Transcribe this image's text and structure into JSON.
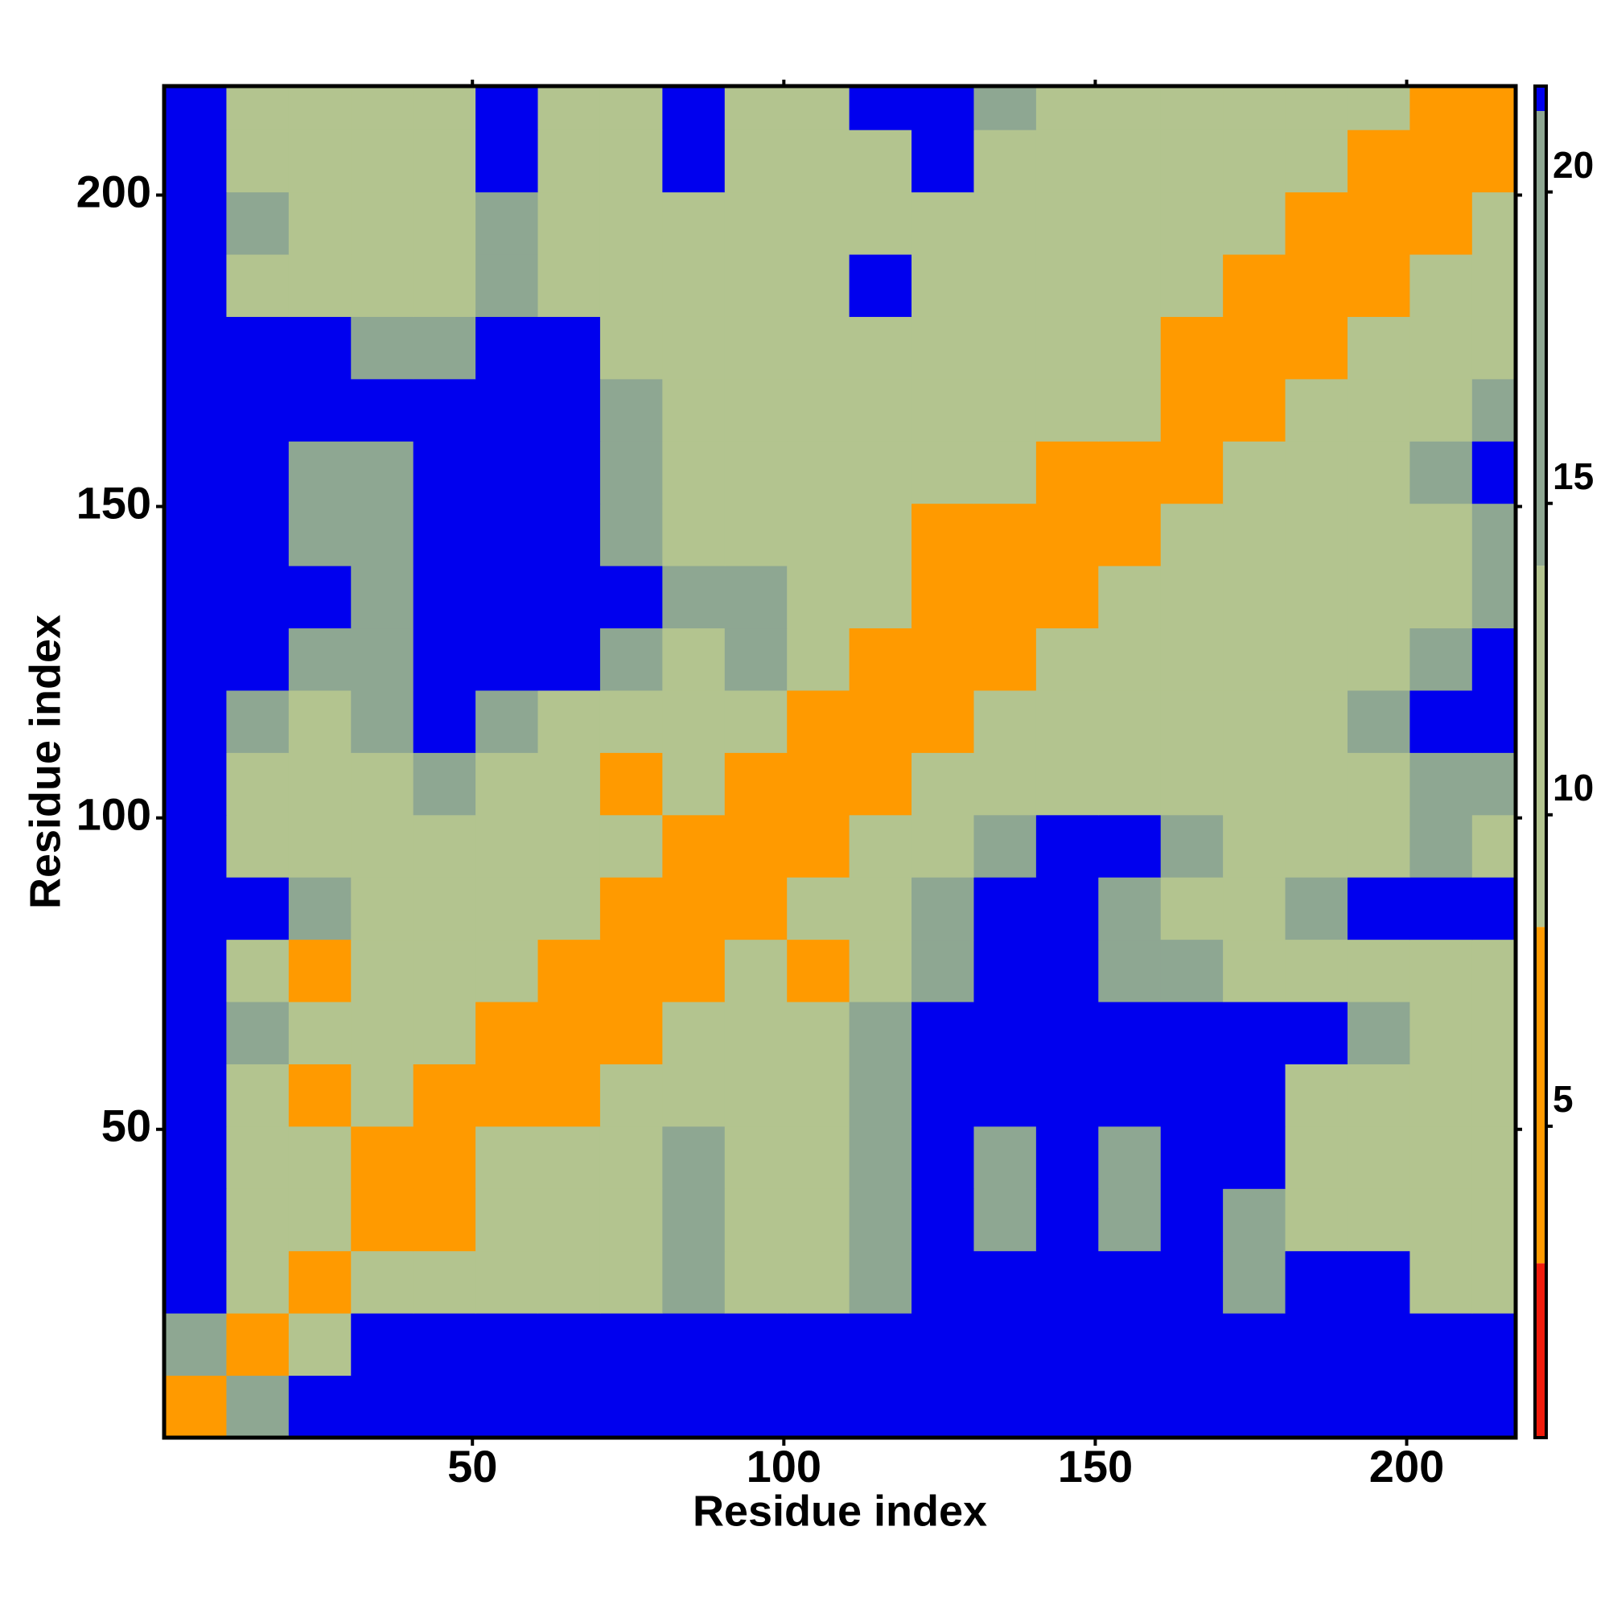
{
  "chart_data": {
    "type": "heatmap",
    "x_label": "Residue index",
    "y_label": "Residue index",
    "xlim": [
      0.5,
      217.5
    ],
    "ylim": [
      0.5,
      217.5
    ],
    "xticks": [
      50,
      100,
      150,
      200
    ],
    "yticks": [
      50,
      100,
      150,
      200
    ],
    "xbins": [
      0.5,
      10.5,
      20.5,
      30.5,
      40.5,
      50.5,
      60.5,
      70.5,
      80.5,
      90.5,
      100.5,
      110.5,
      120.5,
      130.5,
      140.5,
      150.5,
      160.5,
      170.5,
      180.5,
      190.5,
      200.5,
      210.5,
      217.5
    ],
    "ybins": [
      0.5,
      10.5,
      20.5,
      30.5,
      40.5,
      50.5,
      60.5,
      70.5,
      80.5,
      90.5,
      100.5,
      110.5,
      120.5,
      130.5,
      140.5,
      150.5,
      160.5,
      170.5,
      180.5,
      190.5,
      200.5,
      210.5,
      217.5
    ],
    "clim": [
      0,
      21.7
    ],
    "cticks": [
      5,
      10,
      15,
      20
    ],
    "color_bands": [
      {
        "max": 2.8,
        "color": "#f21c0c"
      },
      {
        "max": 8.2,
        "color": "#ff9a00"
      },
      {
        "max": 14,
        "color": "#b3c48f"
      },
      {
        "max": 21.3,
        "color": "#8ea792"
      },
      {
        "max": 21.7,
        "color": "#0000ee"
      }
    ],
    "z": [
      [
        4,
        15,
        21.5,
        21.5,
        21.5,
        21.5,
        21.5,
        21.5,
        21.5,
        21.5,
        21.5,
        21.5,
        21.5,
        21.5,
        21.5,
        21.5,
        21.5,
        21.5,
        21.5,
        21.5,
        21.5,
        21.5
      ],
      [
        15,
        4,
        12,
        21.5,
        21.5,
        21.5,
        21.5,
        21.5,
        21.5,
        21.5,
        21.5,
        21.5,
        21.5,
        21.5,
        21.5,
        21.5,
        21.5,
        21.5,
        21.5,
        21.5,
        21.5,
        21.5
      ],
      [
        21.5,
        12,
        4,
        10,
        12,
        10,
        12,
        10,
        15,
        12,
        12,
        15,
        21.5,
        21.5,
        21.5,
        21.5,
        21.5,
        15,
        21.5,
        21.5,
        12,
        12
      ],
      [
        21.5,
        12,
        10,
        4,
        8,
        10,
        12,
        10,
        15,
        12,
        12,
        15,
        21.5,
        15,
        21.5,
        15,
        21.5,
        15,
        12,
        12,
        12,
        12
      ],
      [
        21.5,
        12,
        10,
        8,
        4,
        10,
        12,
        12,
        15,
        12,
        12,
        15,
        21.5,
        15,
        21.5,
        15,
        21.5,
        21.5,
        12,
        12,
        10,
        12
      ],
      [
        21.5,
        12,
        8,
        10,
        7,
        4,
        8,
        12,
        12,
        12,
        12,
        15,
        21.5,
        21.5,
        21.5,
        21.5,
        21.5,
        21.5,
        12,
        12,
        12,
        12
      ],
      [
        21.5,
        15,
        12,
        12,
        10,
        7,
        4,
        8,
        12,
        12,
        12,
        15,
        21.5,
        21.5,
        21.5,
        21.5,
        21.5,
        21.5,
        21.5,
        15,
        12,
        12
      ],
      [
        21.5,
        12,
        8,
        12,
        12,
        10,
        7,
        4,
        8,
        10,
        8,
        12,
        15,
        21.5,
        21.5,
        15,
        15,
        12,
        12,
        12,
        12,
        12
      ],
      [
        21.5,
        21.5,
        15,
        12,
        12,
        12,
        12,
        8,
        4,
        8,
        12,
        12,
        15,
        21.5,
        21.5,
        15,
        12,
        12,
        15,
        21.5,
        21.5,
        21.5
      ],
      [
        21.5,
        12,
        12,
        12,
        12,
        12,
        12,
        12,
        8,
        4,
        8,
        12,
        12,
        15,
        21.5,
        21.5,
        15,
        12,
        10,
        12,
        15,
        12
      ],
      [
        21.5,
        12,
        12,
        12,
        15,
        12,
        12,
        8,
        12,
        8,
        4,
        8,
        12,
        12,
        12,
        12,
        12,
        12,
        10,
        12,
        15,
        15
      ],
      [
        21.5,
        15,
        12,
        15,
        21.5,
        15,
        12,
        12,
        12,
        12,
        8,
        4,
        8,
        12,
        12,
        12,
        10,
        12,
        12,
        15,
        21.5,
        21.5
      ],
      [
        21.5,
        21.5,
        15,
        15,
        21.5,
        21.5,
        21.5,
        15,
        12,
        15,
        12,
        8,
        4,
        8,
        10,
        12,
        12,
        12,
        12,
        12,
        15,
        21.5
      ],
      [
        21.5,
        21.5,
        21.5,
        15,
        21.5,
        21.5,
        21.5,
        21.5,
        15,
        15,
        12,
        12,
        8,
        4,
        8,
        10,
        12,
        10,
        12,
        12,
        12,
        15
      ],
      [
        21.5,
        21.5,
        15,
        15,
        21.5,
        21.5,
        21.5,
        15,
        12,
        12,
        12,
        10,
        8,
        8,
        4,
        8,
        12,
        12,
        12,
        10,
        12,
        15
      ],
      [
        21.5,
        21.5,
        15,
        15,
        21.5,
        21.5,
        21.5,
        15,
        12,
        12,
        12,
        10,
        12,
        12,
        8,
        4,
        8,
        12,
        12,
        12,
        15,
        21.5
      ],
      [
        21.5,
        21.5,
        21.5,
        21.5,
        21.5,
        21.5,
        21.5,
        15,
        12,
        12,
        12,
        12,
        10,
        12,
        12,
        10,
        4,
        8,
        12,
        12,
        12,
        15
      ],
      [
        21.5,
        21.5,
        21.5,
        15,
        15,
        21.5,
        21.5,
        12,
        12,
        12,
        12,
        12,
        12,
        12,
        12,
        12,
        8,
        4,
        8,
        12,
        12,
        12
      ],
      [
        21.5,
        12,
        12,
        12,
        12,
        15,
        12,
        12,
        12,
        10,
        12,
        21.5,
        12,
        12,
        12,
        12,
        10,
        8,
        4,
        8,
        12,
        12
      ],
      [
        21.5,
        15,
        12,
        12,
        12,
        15,
        12,
        12,
        12,
        12,
        12,
        12,
        12,
        12,
        10,
        12,
        12,
        12,
        8,
        4,
        8,
        12
      ],
      [
        21.5,
        12,
        12,
        12,
        12,
        21.5,
        12,
        12,
        21.5,
        12,
        12,
        12,
        21.5,
        12,
        12,
        12,
        12,
        12,
        12,
        8,
        4,
        8
      ],
      [
        21.5,
        12,
        12,
        12,
        12,
        21.5,
        12,
        12,
        21.5,
        12,
        12,
        21.5,
        21.5,
        15,
        12,
        12,
        12,
        12,
        12,
        12,
        8,
        4
      ]
    ]
  }
}
